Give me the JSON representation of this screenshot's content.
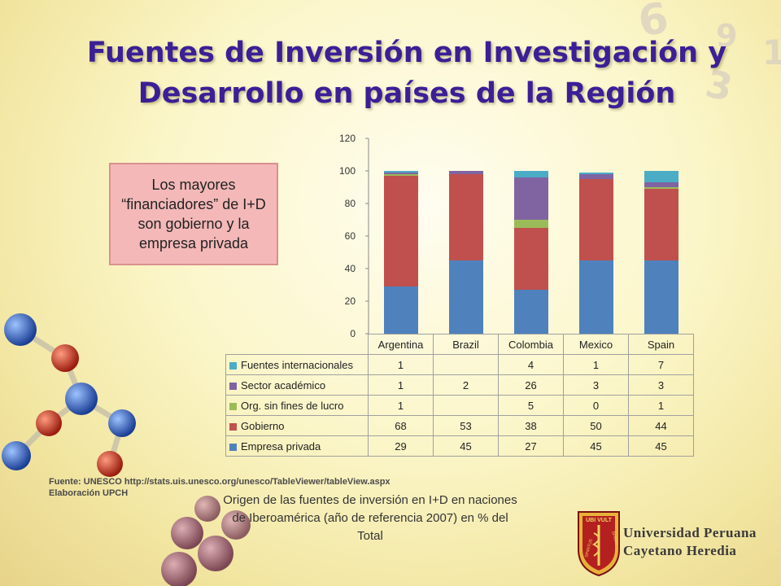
{
  "title": "Fuentes de Inversión en Investigación y Desarrollo en países de la Región",
  "callout": "Los mayores “financiadores” de I+D son gobierno y la empresa privada",
  "source_line1": "Fuente: UNESCO http://stats.uis.unesco.org/unesco/TableViewer/tableView.aspx",
  "source_line2": "Elaboración UPCH",
  "caption": "Origen de las fuentes de inversión en I+D en naciones de Iberoamérica (año de referencia 2007) en % del Total",
  "university": {
    "line1": "Universidad Peruana",
    "line2": "Cayetano Heredia",
    "seal_top": "UBI VULT",
    "seal_side_left": "SPIRITUS",
    "seal_side_right": "SPIRAT"
  },
  "colors": {
    "title": "#3b1f96",
    "empresa_privada": "#4f81bd",
    "gobierno": "#c0504d",
    "org_sin_fines": "#9bbb59",
    "sector_academico": "#8064a2",
    "fuentes_internacionales": "#4bacc6"
  },
  "chart_data": {
    "type": "bar",
    "stacked": true,
    "categories": [
      "Argentina",
      "Brazil",
      "Colombia",
      "Mexico",
      "Spain"
    ],
    "ylim": [
      0,
      120
    ],
    "yticks": [
      "0",
      "20",
      "40",
      "60",
      "80",
      "100",
      "120"
    ],
    "grid": false,
    "legend": "data-table",
    "series": [
      {
        "name": "Empresa privada",
        "values": [
          29,
          45,
          27,
          45,
          45
        ],
        "labels": [
          "29",
          "45",
          "27",
          "45",
          "45"
        ],
        "color": "#4f81bd"
      },
      {
        "name": "Gobierno",
        "values": [
          68,
          53,
          38,
          50,
          44
        ],
        "labels": [
          "68",
          "53",
          "38",
          "50",
          "44"
        ],
        "color": "#c0504d"
      },
      {
        "name": "Org. sin fines de lucro",
        "values": [
          1,
          0,
          5,
          0,
          1
        ],
        "labels": [
          "1",
          "",
          "5",
          "0",
          "1"
        ],
        "color": "#9bbb59"
      },
      {
        "name": "Sector académico",
        "values": [
          1,
          2,
          26,
          3,
          3
        ],
        "labels": [
          "1",
          "2",
          "26",
          "3",
          "3"
        ],
        "color": "#8064a2"
      },
      {
        "name": "Fuentes internacionales",
        "values": [
          1,
          0,
          4,
          1,
          7
        ],
        "labels": [
          "1",
          "",
          "4",
          "1",
          "7"
        ],
        "color": "#4bacc6"
      }
    ]
  }
}
